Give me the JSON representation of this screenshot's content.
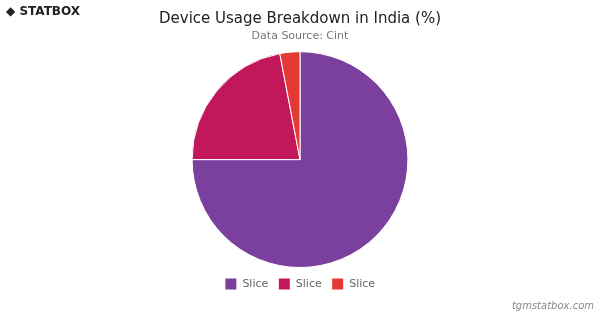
{
  "chart_data": {
    "type": "pie",
    "title": "Device Usage Breakdown in India (%)",
    "subtitle": "Data Source: Cint",
    "categories": [
      "Slice",
      "Slice",
      "Slice"
    ],
    "values": [
      75,
      22,
      3
    ],
    "colors": [
      "#7b3f9e",
      "#c2185b",
      "#e53935"
    ],
    "legend": "bottom",
    "annotations": [
      "◆ STATBOX",
      "tgmstatbox.com"
    ]
  }
}
